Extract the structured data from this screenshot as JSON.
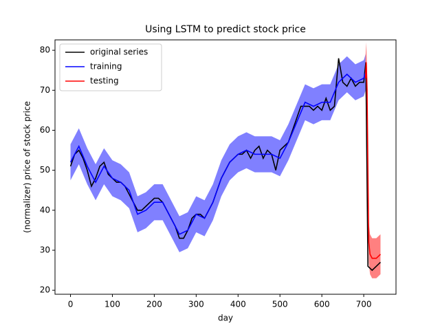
{
  "chart_data": {
    "type": "line",
    "title": "Using LSTM to predict stock price",
    "xlabel": "day",
    "ylabel": "(normalizer) price of stock price",
    "xlim": [
      -37,
      777
    ],
    "ylim": [
      19,
      82.6
    ],
    "xticks": [
      0,
      100,
      200,
      300,
      400,
      500,
      600,
      700
    ],
    "yticks": [
      20,
      30,
      40,
      50,
      60,
      70,
      80
    ],
    "legend": "upper left",
    "series": [
      {
        "name": "original series",
        "color": "#000000",
        "x": [
          0,
          10,
          20,
          30,
          40,
          50,
          60,
          70,
          80,
          90,
          100,
          110,
          120,
          130,
          140,
          150,
          160,
          170,
          180,
          190,
          200,
          210,
          220,
          230,
          240,
          250,
          260,
          270,
          280,
          290,
          300,
          310,
          320,
          330,
          340,
          350,
          360,
          370,
          380,
          390,
          400,
          410,
          420,
          430,
          440,
          450,
          460,
          470,
          480,
          490,
          500,
          510,
          520,
          530,
          540,
          550,
          560,
          570,
          580,
          590,
          600,
          610,
          620,
          630,
          640,
          650,
          660,
          670,
          680,
          690,
          700,
          705,
          710,
          720,
          730,
          740
        ],
        "values": [
          51,
          54,
          55,
          53,
          50,
          46,
          48,
          51,
          52,
          49,
          48,
          47,
          47,
          46,
          44,
          42,
          40,
          40,
          41,
          42,
          43,
          43,
          42,
          40,
          38,
          36,
          33,
          33,
          35,
          38,
          39,
          39,
          38,
          40,
          42,
          45,
          48,
          50,
          52,
          53,
          54,
          54,
          55,
          53,
          55,
          56,
          53,
          55,
          54,
          50,
          55,
          56,
          57,
          60,
          63,
          66,
          66,
          66,
          65,
          66,
          65,
          68,
          65,
          66,
          78,
          72,
          71,
          73,
          71,
          72,
          72,
          77,
          26,
          25,
          26,
          27
        ]
      },
      {
        "name": "training",
        "color": "#0000ff",
        "band_color": "#8080ff",
        "x": [
          0,
          20,
          40,
          60,
          80,
          100,
          120,
          140,
          160,
          180,
          200,
          220,
          240,
          260,
          280,
          300,
          320,
          340,
          360,
          380,
          400,
          420,
          440,
          460,
          480,
          500,
          520,
          540,
          560,
          580,
          600,
          620,
          640,
          660,
          680,
          700,
          706
        ],
        "values": [
          52,
          56,
          51,
          47,
          51,
          48,
          47,
          45,
          39,
          40,
          42,
          42,
          38,
          34,
          35,
          39,
          38,
          42,
          48,
          52,
          54,
          55,
          54,
          54,
          54,
          53,
          57,
          62,
          67,
          66,
          67,
          67,
          72,
          74,
          72,
          73,
          75
        ],
        "band_upper": [
          56.5,
          60.5,
          55.5,
          51.5,
          55.5,
          52.5,
          51.5,
          49.5,
          43.5,
          44.5,
          46.5,
          46.5,
          42.5,
          38.5,
          39.5,
          43.5,
          42.5,
          46.5,
          52.5,
          56.5,
          58.5,
          59.5,
          58.5,
          58.5,
          58.5,
          57.5,
          61.5,
          66.5,
          71.5,
          70.5,
          71.5,
          71.5,
          76.5,
          78.5,
          76.5,
          77.5,
          79.5
        ],
        "band_lower": [
          47.5,
          51.5,
          46.5,
          42.5,
          46.5,
          43.5,
          42.5,
          40.5,
          34.5,
          35.5,
          37.5,
          37.5,
          33.5,
          29.5,
          30.5,
          34.5,
          33.5,
          37.5,
          43.5,
          47.5,
          49.5,
          50.5,
          49.5,
          49.5,
          49.5,
          48.5,
          52.5,
          57.5,
          62.5,
          61.5,
          62.5,
          62.5,
          67.5,
          69.5,
          67.5,
          68.5,
          70.5
        ]
      },
      {
        "name": "testing",
        "color": "#ff0000",
        "band_color": "#ff8080",
        "x": [
          704,
          706,
          708,
          710,
          712,
          715,
          720,
          730,
          740
        ],
        "values": [
          73,
          77,
          70,
          50,
          32,
          29,
          28,
          28,
          29
        ],
        "band_upper": [
          78,
          82,
          75,
          55,
          37,
          34,
          33,
          33,
          34
        ],
        "band_lower": [
          68,
          72,
          65,
          45,
          27,
          24,
          23,
          23,
          24
        ]
      }
    ]
  }
}
